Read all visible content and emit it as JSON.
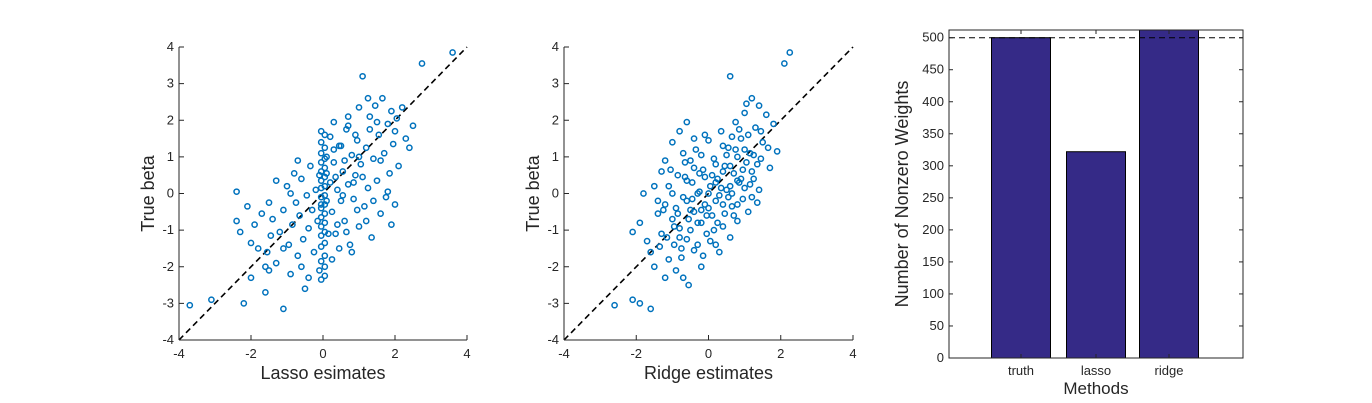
{
  "chart_data": [
    {
      "type": "scatter",
      "xlabel": "Lasso esimates",
      "ylabel": "True beta",
      "xlim": [
        -4,
        4
      ],
      "ylim": [
        -4,
        4
      ],
      "xticks": [
        "-4",
        "-2",
        "0",
        "2",
        "4"
      ],
      "yticks": [
        "-4",
        "-3",
        "-2",
        "-1",
        "0",
        "1",
        "2",
        "3",
        "4"
      ],
      "reference_line": {
        "style": "dashed",
        "from": [
          -4,
          -4
        ],
        "to": [
          4,
          4
        ]
      },
      "marker_color": "#0072BD",
      "points": [
        [
          -3.7,
          -3.05
        ],
        [
          -3.1,
          -2.9
        ],
        [
          -2.2,
          -3.0
        ],
        [
          -2.4,
          0.05
        ],
        [
          -2.4,
          -0.75
        ],
        [
          -2.3,
          -1.05
        ],
        [
          -2.1,
          -0.35
        ],
        [
          -2.0,
          -1.35
        ],
        [
          -1.9,
          -0.85
        ],
        [
          -1.8,
          -1.5
        ],
        [
          -1.7,
          -0.55
        ],
        [
          -1.6,
          -2.0
        ],
        [
          -1.55,
          -1.6
        ],
        [
          -1.5,
          -0.25
        ],
        [
          -1.45,
          -1.15
        ],
        [
          -1.4,
          -0.7
        ],
        [
          -1.3,
          -1.9
        ],
        [
          -1.2,
          -1.05
        ],
        [
          -1.1,
          -0.45
        ],
        [
          -1.1,
          -3.15
        ],
        [
          -1.0,
          0.2
        ],
        [
          -0.95,
          -1.4
        ],
        [
          -0.9,
          -2.2
        ],
        [
          -0.85,
          -0.85
        ],
        [
          -0.8,
          0.55
        ],
        [
          -0.75,
          -0.25
        ],
        [
          -0.7,
          -1.7
        ],
        [
          -0.65,
          -0.6
        ],
        [
          -0.6,
          0.4
        ],
        [
          -0.55,
          -1.25
        ],
        [
          -0.5,
          -2.6
        ],
        [
          -0.45,
          -0.05
        ],
        [
          -0.4,
          -0.95
        ],
        [
          -0.35,
          0.75
        ],
        [
          -0.3,
          -0.45
        ],
        [
          -0.25,
          -1.6
        ],
        [
          -0.2,
          0.1
        ],
        [
          -0.15,
          -0.75
        ],
        [
          -0.1,
          0.5
        ],
        [
          -0.1,
          -2.1
        ],
        [
          -0.05,
          -0.3
        ],
        [
          -1.6,
          -2.7
        ],
        [
          -1.5,
          -2.1
        ],
        [
          -0.9,
          0.0
        ],
        [
          -0.6,
          -2.0
        ],
        [
          -0.7,
          0.9
        ],
        [
          -2.0,
          -2.3
        ],
        [
          -1.3,
          0.35
        ],
        [
          -0.4,
          -2.3
        ],
        [
          -1.1,
          -1.5
        ],
        [
          -0.05,
          1.7
        ],
        [
          -0.05,
          1.4
        ],
        [
          -0.05,
          1.1
        ],
        [
          -0.05,
          0.85
        ],
        [
          -0.05,
          0.6
        ],
        [
          -0.05,
          0.35
        ],
        [
          -0.05,
          0.15
        ],
        [
          -0.05,
          -0.1
        ],
        [
          -0.05,
          -0.4
        ],
        [
          -0.05,
          -0.65
        ],
        [
          -0.05,
          -0.9
        ],
        [
          -0.05,
          -1.15
        ],
        [
          -0.05,
          -1.45
        ],
        [
          -0.05,
          -1.85
        ],
        [
          -0.05,
          -2.35
        ],
        [
          0.05,
          1.6
        ],
        [
          0.05,
          1.25
        ],
        [
          0.05,
          0.95
        ],
        [
          0.05,
          0.7
        ],
        [
          0.05,
          0.45
        ],
        [
          0.05,
          0.2
        ],
        [
          0.05,
          -0.05
        ],
        [
          0.05,
          -0.3
        ],
        [
          0.05,
          -0.55
        ],
        [
          0.05,
          -0.8
        ],
        [
          0.05,
          -1.05
        ],
        [
          0.05,
          -1.35
        ],
        [
          0.05,
          -1.7
        ],
        [
          0.05,
          -2.0
        ],
        [
          0.05,
          -2.25
        ],
        [
          0.1,
          1.0
        ],
        [
          0.1,
          -0.2
        ],
        [
          0.1,
          0.55
        ],
        [
          0.2,
          0.3
        ],
        [
          0.2,
          1.55
        ],
        [
          0.25,
          -0.5
        ],
        [
          0.3,
          0.85
        ],
        [
          0.35,
          -1.1
        ],
        [
          0.4,
          0.1
        ],
        [
          0.45,
          1.3
        ],
        [
          0.5,
          -0.2
        ],
        [
          0.55,
          0.6
        ],
        [
          0.6,
          -0.75
        ],
        [
          0.65,
          1.75
        ],
        [
          0.7,
          0.25
        ],
        [
          0.75,
          -1.4
        ],
        [
          0.8,
          1.05
        ],
        [
          0.85,
          -0.15
        ],
        [
          0.9,
          0.5
        ],
        [
          0.95,
          1.45
        ],
        [
          1.0,
          -0.9
        ],
        [
          1.05,
          0.8
        ],
        [
          1.1,
          3.2
        ],
        [
          1.15,
          -0.35
        ],
        [
          1.2,
          1.25
        ],
        [
          1.25,
          0.15
        ],
        [
          1.3,
          2.1
        ],
        [
          1.35,
          -1.2
        ],
        [
          1.4,
          0.95
        ],
        [
          1.45,
          2.4
        ],
        [
          1.5,
          0.35
        ],
        [
          1.55,
          1.6
        ],
        [
          1.6,
          -0.55
        ],
        [
          1.65,
          2.6
        ],
        [
          1.7,
          1.1
        ],
        [
          1.75,
          -0.1
        ],
        [
          1.8,
          1.9
        ],
        [
          1.85,
          0.55
        ],
        [
          1.9,
          2.25
        ],
        [
          1.95,
          1.35
        ],
        [
          2.0,
          -0.3
        ],
        [
          2.05,
          2.05
        ],
        [
          2.1,
          0.75
        ],
        [
          2.2,
          2.35
        ],
        [
          2.3,
          1.5
        ],
        [
          2.4,
          1.25
        ],
        [
          2.75,
          3.55
        ],
        [
          3.6,
          3.85
        ],
        [
          0.3,
          1.95
        ],
        [
          0.5,
          1.3
        ],
        [
          0.7,
          1.85
        ],
        [
          0.9,
          1.6
        ],
        [
          1.0,
          2.35
        ],
        [
          0.6,
          0.9
        ],
        [
          0.4,
          -0.85
        ],
        [
          0.8,
          -1.6
        ],
        [
          1.2,
          -0.75
        ],
        [
          1.5,
          1.95
        ],
        [
          1.8,
          0.05
        ],
        [
          2.0,
          1.7
        ],
        [
          0.25,
          -1.8
        ],
        [
          0.15,
          -1.1
        ],
        [
          0.3,
          1.2
        ],
        [
          1.1,
          0.45
        ],
        [
          1.4,
          -0.2
        ],
        [
          0.7,
          2.1
        ],
        [
          1.0,
          1.0
        ],
        [
          1.3,
          1.75
        ],
        [
          0.55,
          -0.05
        ],
        [
          0.85,
          0.3
        ],
        [
          1.6,
          0.9
        ],
        [
          0.35,
          0.45
        ],
        [
          1.25,
          2.6
        ],
        [
          0.95,
          -0.45
        ],
        [
          0.45,
          -1.5
        ],
        [
          0.65,
          -1.05
        ],
        [
          2.5,
          1.85
        ],
        [
          1.9,
          -0.85
        ]
      ]
    },
    {
      "type": "scatter",
      "xlabel": "Ridge estimates",
      "ylabel": "True beta",
      "xlim": [
        -4,
        4
      ],
      "ylim": [
        -4,
        4
      ],
      "xticks": [
        "-4",
        "-2",
        "0",
        "2",
        "4"
      ],
      "yticks": [
        "-4",
        "-3",
        "-2",
        "-1",
        "0",
        "1",
        "2",
        "3",
        "4"
      ],
      "reference_line": {
        "style": "dashed",
        "from": [
          -4,
          -4
        ],
        "to": [
          4,
          4
        ]
      },
      "marker_color": "#0072BD",
      "points": [
        [
          -2.6,
          -3.05
        ],
        [
          -2.1,
          -2.9
        ],
        [
          -1.9,
          -3.0
        ],
        [
          -1.6,
          -3.15
        ],
        [
          -2.1,
          -1.05
        ],
        [
          -1.9,
          -0.8
        ],
        [
          -1.7,
          -1.3
        ],
        [
          -1.6,
          -1.6
        ],
        [
          -1.5,
          -2.0
        ],
        [
          -1.4,
          -0.55
        ],
        [
          -1.3,
          -1.1
        ],
        [
          -1.2,
          -2.3
        ],
        [
          -1.2,
          -0.3
        ],
        [
          -1.1,
          0.2
        ],
        [
          -1.0,
          -0.7
        ],
        [
          -0.95,
          -1.4
        ],
        [
          -0.9,
          -2.1
        ],
        [
          -0.85,
          0.5
        ],
        [
          -0.8,
          -0.95
        ],
        [
          -0.75,
          -1.75
        ],
        [
          -0.7,
          -0.1
        ],
        [
          -0.65,
          0.85
        ],
        [
          -0.6,
          -1.25
        ],
        [
          -0.55,
          -2.5
        ],
        [
          -0.5,
          -0.45
        ],
        [
          -0.45,
          0.3
        ],
        [
          -0.4,
          -1.55
        ],
        [
          -0.35,
          1.2
        ],
        [
          -0.3,
          -0.8
        ],
        [
          -0.25,
          0.05
        ],
        [
          -0.2,
          -2.0
        ],
        [
          -0.15,
          0.65
        ],
        [
          -0.1,
          -0.3
        ],
        [
          -0.05,
          -1.1
        ],
        [
          0.0,
          1.45
        ],
        [
          0.05,
          0.2
        ],
        [
          0.1,
          -0.6
        ],
        [
          0.15,
          0.95
        ],
        [
          0.2,
          -1.4
        ],
        [
          0.25,
          0.4
        ],
        [
          0.3,
          -0.05
        ],
        [
          0.35,
          1.7
        ],
        [
          0.4,
          -0.9
        ],
        [
          0.45,
          0.75
        ],
        [
          0.5,
          0.1
        ],
        [
          0.55,
          1.25
        ],
        [
          0.6,
          3.2
        ],
        [
          0.65,
          -0.35
        ],
        [
          0.7,
          0.55
        ],
        [
          0.75,
          1.95
        ],
        [
          0.8,
          -0.75
        ],
        [
          0.85,
          0.3
        ],
        [
          0.9,
          1.5
        ],
        [
          0.95,
          -0.15
        ],
        [
          1.0,
          2.2
        ],
        [
          1.05,
          0.85
        ],
        [
          1.1,
          -0.5
        ],
        [
          1.15,
          1.1
        ],
        [
          1.2,
          2.6
        ],
        [
          1.25,
          0.4
        ],
        [
          1.3,
          1.8
        ],
        [
          1.35,
          -0.25
        ],
        [
          1.4,
          2.4
        ],
        [
          1.45,
          0.95
        ],
        [
          1.5,
          1.4
        ],
        [
          1.6,
          2.15
        ],
        [
          1.7,
          0.7
        ],
        [
          1.8,
          1.9
        ],
        [
          1.9,
          1.15
        ],
        [
          2.1,
          3.55
        ],
        [
          2.25,
          3.85
        ],
        [
          -1.0,
          1.4
        ],
        [
          -0.8,
          1.7
        ],
        [
          -0.6,
          1.95
        ],
        [
          -0.4,
          1.5
        ],
        [
          -0.2,
          1.05
        ],
        [
          -1.3,
          0.6
        ],
        [
          -1.5,
          0.2
        ],
        [
          -0.7,
          -2.3
        ],
        [
          -1.1,
          -1.8
        ],
        [
          -0.9,
          -0.4
        ],
        [
          -0.5,
          0.9
        ],
        [
          -0.3,
          -1.4
        ],
        [
          -0.1,
          0.45
        ],
        [
          0.2,
          -0.2
        ],
        [
          0.4,
          0.6
        ],
        [
          0.6,
          -1.2
        ],
        [
          0.8,
          1.0
        ],
        [
          1.0,
          0.15
        ],
        [
          1.2,
          -0.1
        ],
        [
          -1.8,
          0.0
        ],
        [
          -1.4,
          -0.2
        ],
        [
          -1.2,
          0.9
        ],
        [
          -0.6,
          0.35
        ],
        [
          -0.4,
          -0.5
        ],
        [
          -0.2,
          -0.8
        ],
        [
          0.0,
          -0.4
        ],
        [
          0.2,
          0.8
        ],
        [
          0.4,
          1.3
        ],
        [
          0.6,
          0.2
        ],
        [
          0.8,
          -0.3
        ],
        [
          1.0,
          1.2
        ],
        [
          1.2,
          0.6
        ],
        [
          1.4,
          0.1
        ],
        [
          -0.7,
          1.1
        ],
        [
          -0.5,
          -1.0
        ],
        [
          -0.3,
          0.0
        ],
        [
          -0.1,
          1.6
        ],
        [
          0.1,
          0.5
        ],
        [
          0.3,
          -1.6
        ],
        [
          0.5,
          1.05
        ],
        [
          0.7,
          -0.6
        ],
        [
          0.9,
          0.4
        ],
        [
          1.1,
          1.6
        ],
        [
          -1.0,
          0.0
        ],
        [
          -0.8,
          -1.2
        ],
        [
          -0.6,
          -0.2
        ],
        [
          -0.4,
          0.7
        ],
        [
          -0.2,
          -0.45
        ],
        [
          0.0,
          0.0
        ],
        [
          0.2,
          0.3
        ],
        [
          0.4,
          -0.3
        ],
        [
          0.6,
          0.75
        ],
        [
          0.8,
          0.35
        ],
        [
          -0.05,
          -0.6
        ],
        [
          0.15,
          -1.0
        ],
        [
          0.35,
          0.15
        ],
        [
          0.55,
          -0.1
        ],
        [
          -0.25,
          0.55
        ],
        [
          -0.45,
          -0.15
        ],
        [
          -0.65,
          0.45
        ],
        [
          -0.85,
          -0.55
        ],
        [
          -1.05,
          0.65
        ],
        [
          -1.25,
          -0.45
        ],
        [
          0.65,
          1.55
        ],
        [
          0.85,
          1.75
        ],
        [
          1.05,
          2.45
        ],
        [
          1.25,
          1.05
        ],
        [
          1.45,
          1.7
        ],
        [
          1.65,
          1.25
        ],
        [
          -1.35,
          -1.45
        ],
        [
          -1.15,
          -1.2
        ],
        [
          -0.95,
          -0.9
        ],
        [
          -0.75,
          -1.5
        ],
        [
          -0.55,
          -0.7
        ],
        [
          0.95,
          0.65
        ],
        [
          1.15,
          0.25
        ],
        [
          1.35,
          0.8
        ],
        [
          -0.15,
          -1.7
        ],
        [
          0.05,
          -1.3
        ],
        [
          0.25,
          -0.8
        ],
        [
          0.45,
          -0.55
        ],
        [
          0.65,
          0.0
        ],
        [
          0.75,
          1.2
        ]
      ]
    },
    {
      "type": "bar",
      "categories": [
        "truth",
        "lasso",
        "ridge"
      ],
      "values": [
        500,
        322,
        512
      ],
      "xlabel": "Methods",
      "ylabel": "Number of Nonzero Weights",
      "ylim": [
        0,
        512
      ],
      "yticks": [
        "0",
        "50",
        "100",
        "150",
        "200",
        "250",
        "300",
        "350",
        "400",
        "450",
        "500"
      ],
      "reference_line": {
        "style": "dashed",
        "y": 500
      },
      "bar_color": "#352A87"
    }
  ]
}
